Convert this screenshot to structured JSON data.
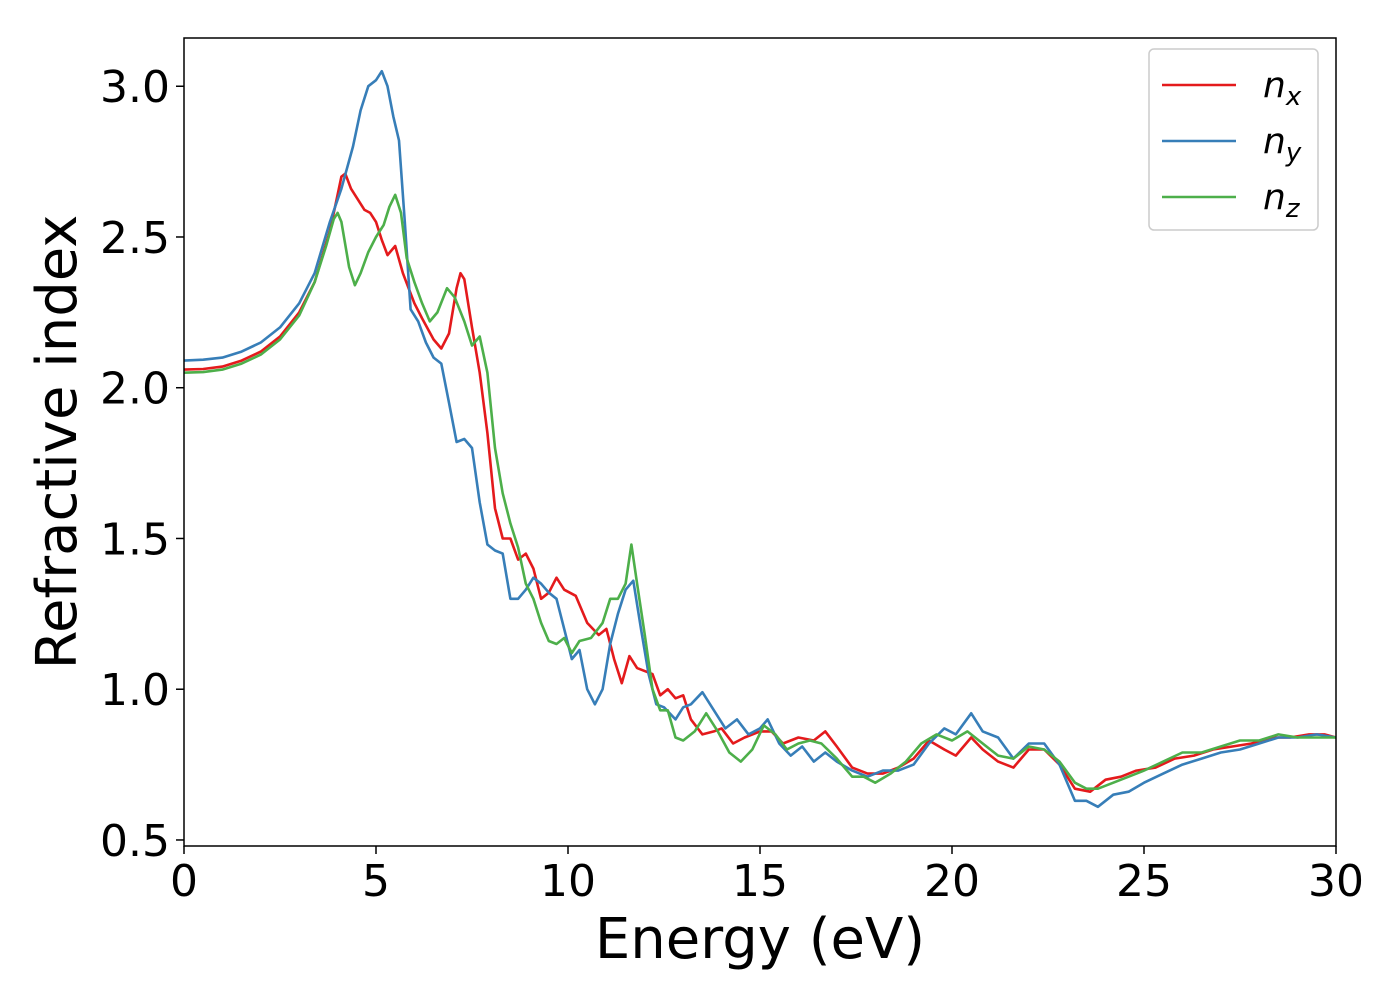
{
  "chart_data": {
    "type": "line",
    "title": "",
    "xlabel": "Energy (eV)",
    "ylabel": "Refractive index",
    "xlim": [
      0,
      30
    ],
    "ylim": [
      0.48,
      3.16
    ],
    "xticks": [
      0,
      5,
      10,
      15,
      20,
      25,
      30
    ],
    "xtick_labels": [
      "0",
      "5",
      "10",
      "15",
      "20",
      "25",
      "30"
    ],
    "yticks": [
      0.5,
      1.0,
      1.5,
      2.0,
      2.5,
      3.0
    ],
    "ytick_labels": [
      "0.5",
      "1.0",
      "1.5",
      "2.0",
      "2.5",
      "3.0"
    ],
    "grid": false,
    "legend_position": "top-right",
    "series": [
      {
        "name": "n_x",
        "label_main": "n",
        "label_sub": "x",
        "color": "#e41a1c",
        "points": [
          [
            0,
            2.06
          ],
          [
            0.5,
            2.062
          ],
          [
            1,
            2.07
          ],
          [
            1.5,
            2.09
          ],
          [
            2,
            2.12
          ],
          [
            2.5,
            2.17
          ],
          [
            3,
            2.25
          ],
          [
            3.4,
            2.35
          ],
          [
            3.8,
            2.52
          ],
          [
            4.0,
            2.64
          ],
          [
            4.1,
            2.7
          ],
          [
            4.2,
            2.71
          ],
          [
            4.35,
            2.66
          ],
          [
            4.5,
            2.63
          ],
          [
            4.7,
            2.59
          ],
          [
            4.85,
            2.58
          ],
          [
            5.0,
            2.55
          ],
          [
            5.15,
            2.49
          ],
          [
            5.3,
            2.44
          ],
          [
            5.5,
            2.47
          ],
          [
            5.7,
            2.38
          ],
          [
            5.85,
            2.33
          ],
          [
            6.0,
            2.28
          ],
          [
            6.2,
            2.23
          ],
          [
            6.5,
            2.16
          ],
          [
            6.7,
            2.13
          ],
          [
            6.9,
            2.18
          ],
          [
            7.1,
            2.33
          ],
          [
            7.2,
            2.38
          ],
          [
            7.3,
            2.36
          ],
          [
            7.5,
            2.2
          ],
          [
            7.7,
            2.05
          ],
          [
            7.9,
            1.85
          ],
          [
            8.1,
            1.6
          ],
          [
            8.3,
            1.5
          ],
          [
            8.5,
            1.5
          ],
          [
            8.7,
            1.43
          ],
          [
            8.9,
            1.45
          ],
          [
            9.1,
            1.4
          ],
          [
            9.3,
            1.3
          ],
          [
            9.5,
            1.32
          ],
          [
            9.7,
            1.37
          ],
          [
            9.9,
            1.33
          ],
          [
            10.2,
            1.31
          ],
          [
            10.5,
            1.22
          ],
          [
            10.8,
            1.18
          ],
          [
            11.0,
            1.2
          ],
          [
            11.2,
            1.1
          ],
          [
            11.4,
            1.02
          ],
          [
            11.6,
            1.11
          ],
          [
            11.8,
            1.07
          ],
          [
            12.0,
            1.06
          ],
          [
            12.2,
            1.05
          ],
          [
            12.4,
            0.98
          ],
          [
            12.6,
            1.0
          ],
          [
            12.8,
            0.97
          ],
          [
            13.0,
            0.98
          ],
          [
            13.2,
            0.9
          ],
          [
            13.5,
            0.85
          ],
          [
            13.8,
            0.86
          ],
          [
            14.0,
            0.87
          ],
          [
            14.3,
            0.82
          ],
          [
            14.6,
            0.84
          ],
          [
            15.0,
            0.86
          ],
          [
            15.3,
            0.86
          ],
          [
            15.6,
            0.82
          ],
          [
            16.0,
            0.84
          ],
          [
            16.4,
            0.83
          ],
          [
            16.7,
            0.86
          ],
          [
            17.0,
            0.81
          ],
          [
            17.4,
            0.74
          ],
          [
            17.8,
            0.72
          ],
          [
            18.2,
            0.72
          ],
          [
            18.6,
            0.74
          ],
          [
            19.0,
            0.77
          ],
          [
            19.4,
            0.83
          ],
          [
            19.8,
            0.8
          ],
          [
            20.1,
            0.78
          ],
          [
            20.5,
            0.84
          ],
          [
            20.8,
            0.8
          ],
          [
            21.2,
            0.76
          ],
          [
            21.6,
            0.74
          ],
          [
            22.0,
            0.8
          ],
          [
            22.4,
            0.8
          ],
          [
            22.8,
            0.75
          ],
          [
            23.2,
            0.67
          ],
          [
            23.6,
            0.66
          ],
          [
            24.0,
            0.7
          ],
          [
            24.4,
            0.71
          ],
          [
            24.8,
            0.73
          ],
          [
            25.3,
            0.74
          ],
          [
            25.8,
            0.77
          ],
          [
            26.3,
            0.78
          ],
          [
            26.8,
            0.8
          ],
          [
            27.3,
            0.81
          ],
          [
            27.8,
            0.82
          ],
          [
            28.3,
            0.84
          ],
          [
            28.8,
            0.84
          ],
          [
            29.3,
            0.85
          ],
          [
            29.7,
            0.85
          ],
          [
            30.0,
            0.84
          ]
        ]
      },
      {
        "name": "n_y",
        "label_main": "n",
        "label_sub": "y",
        "color": "#377eb8",
        "points": [
          [
            0,
            2.09
          ],
          [
            0.5,
            2.093
          ],
          [
            1,
            2.1
          ],
          [
            1.5,
            2.12
          ],
          [
            2,
            2.15
          ],
          [
            2.5,
            2.2
          ],
          [
            3,
            2.28
          ],
          [
            3.4,
            2.38
          ],
          [
            3.8,
            2.55
          ],
          [
            4.1,
            2.66
          ],
          [
            4.4,
            2.8
          ],
          [
            4.6,
            2.92
          ],
          [
            4.8,
            3.0
          ],
          [
            5.0,
            3.02
          ],
          [
            5.15,
            3.05
          ],
          [
            5.3,
            3.0
          ],
          [
            5.45,
            2.9
          ],
          [
            5.6,
            2.82
          ],
          [
            5.75,
            2.55
          ],
          [
            5.9,
            2.26
          ],
          [
            6.1,
            2.22
          ],
          [
            6.3,
            2.15
          ],
          [
            6.5,
            2.1
          ],
          [
            6.7,
            2.08
          ],
          [
            6.9,
            1.95
          ],
          [
            7.1,
            1.82
          ],
          [
            7.3,
            1.83
          ],
          [
            7.5,
            1.8
          ],
          [
            7.7,
            1.62
          ],
          [
            7.9,
            1.48
          ],
          [
            8.1,
            1.46
          ],
          [
            8.3,
            1.45
          ],
          [
            8.5,
            1.3
          ],
          [
            8.7,
            1.3
          ],
          [
            8.9,
            1.33
          ],
          [
            9.1,
            1.37
          ],
          [
            9.3,
            1.35
          ],
          [
            9.5,
            1.32
          ],
          [
            9.7,
            1.3
          ],
          [
            9.9,
            1.2
          ],
          [
            10.1,
            1.1
          ],
          [
            10.3,
            1.13
          ],
          [
            10.5,
            1.0
          ],
          [
            10.7,
            0.95
          ],
          [
            10.9,
            1.0
          ],
          [
            11.1,
            1.15
          ],
          [
            11.3,
            1.25
          ],
          [
            11.5,
            1.33
          ],
          [
            11.7,
            1.36
          ],
          [
            11.9,
            1.2
          ],
          [
            12.1,
            1.05
          ],
          [
            12.3,
            0.95
          ],
          [
            12.5,
            0.94
          ],
          [
            12.8,
            0.9
          ],
          [
            13.0,
            0.94
          ],
          [
            13.2,
            0.95
          ],
          [
            13.5,
            0.99
          ],
          [
            13.8,
            0.93
          ],
          [
            14.1,
            0.87
          ],
          [
            14.4,
            0.9
          ],
          [
            14.7,
            0.85
          ],
          [
            15.0,
            0.87
          ],
          [
            15.2,
            0.9
          ],
          [
            15.5,
            0.82
          ],
          [
            15.8,
            0.78
          ],
          [
            16.1,
            0.81
          ],
          [
            16.4,
            0.76
          ],
          [
            16.7,
            0.79
          ],
          [
            17.0,
            0.76
          ],
          [
            17.4,
            0.73
          ],
          [
            17.8,
            0.71
          ],
          [
            18.2,
            0.73
          ],
          [
            18.6,
            0.73
          ],
          [
            19.0,
            0.75
          ],
          [
            19.4,
            0.82
          ],
          [
            19.8,
            0.87
          ],
          [
            20.1,
            0.85
          ],
          [
            20.5,
            0.92
          ],
          [
            20.8,
            0.86
          ],
          [
            21.2,
            0.84
          ],
          [
            21.6,
            0.77
          ],
          [
            22.0,
            0.82
          ],
          [
            22.4,
            0.82
          ],
          [
            22.8,
            0.75
          ],
          [
            23.2,
            0.63
          ],
          [
            23.5,
            0.63
          ],
          [
            23.8,
            0.61
          ],
          [
            24.2,
            0.65
          ],
          [
            24.6,
            0.66
          ],
          [
            25.0,
            0.69
          ],
          [
            25.5,
            0.72
          ],
          [
            26.0,
            0.75
          ],
          [
            26.5,
            0.77
          ],
          [
            27.0,
            0.79
          ],
          [
            27.5,
            0.8
          ],
          [
            28.0,
            0.82
          ],
          [
            28.5,
            0.84
          ],
          [
            29.0,
            0.84
          ],
          [
            29.5,
            0.85
          ],
          [
            30.0,
            0.84
          ]
        ]
      },
      {
        "name": "n_z",
        "label_main": "n",
        "label_sub": "z",
        "color": "#4daf4a",
        "points": [
          [
            0,
            2.05
          ],
          [
            0.5,
            2.052
          ],
          [
            1,
            2.06
          ],
          [
            1.5,
            2.08
          ],
          [
            2,
            2.11
          ],
          [
            2.5,
            2.16
          ],
          [
            3,
            2.24
          ],
          [
            3.4,
            2.35
          ],
          [
            3.7,
            2.47
          ],
          [
            3.9,
            2.56
          ],
          [
            4.0,
            2.58
          ],
          [
            4.1,
            2.55
          ],
          [
            4.3,
            2.4
          ],
          [
            4.45,
            2.34
          ],
          [
            4.6,
            2.38
          ],
          [
            4.8,
            2.45
          ],
          [
            5.0,
            2.5
          ],
          [
            5.2,
            2.54
          ],
          [
            5.35,
            2.6
          ],
          [
            5.5,
            2.64
          ],
          [
            5.65,
            2.58
          ],
          [
            5.8,
            2.43
          ],
          [
            6.0,
            2.35
          ],
          [
            6.2,
            2.28
          ],
          [
            6.4,
            2.22
          ],
          [
            6.6,
            2.25
          ],
          [
            6.85,
            2.33
          ],
          [
            7.05,
            2.3
          ],
          [
            7.3,
            2.22
          ],
          [
            7.5,
            2.14
          ],
          [
            7.7,
            2.17
          ],
          [
            7.9,
            2.05
          ],
          [
            8.1,
            1.8
          ],
          [
            8.3,
            1.65
          ],
          [
            8.5,
            1.55
          ],
          [
            8.7,
            1.47
          ],
          [
            8.9,
            1.35
          ],
          [
            9.1,
            1.3
          ],
          [
            9.3,
            1.22
          ],
          [
            9.5,
            1.16
          ],
          [
            9.7,
            1.15
          ],
          [
            9.9,
            1.17
          ],
          [
            10.1,
            1.12
          ],
          [
            10.3,
            1.16
          ],
          [
            10.6,
            1.17
          ],
          [
            10.9,
            1.22
          ],
          [
            11.1,
            1.3
          ],
          [
            11.3,
            1.3
          ],
          [
            11.5,
            1.35
          ],
          [
            11.65,
            1.48
          ],
          [
            11.8,
            1.35
          ],
          [
            12.0,
            1.18
          ],
          [
            12.2,
            1.0
          ],
          [
            12.4,
            0.93
          ],
          [
            12.6,
            0.93
          ],
          [
            12.8,
            0.84
          ],
          [
            13.0,
            0.83
          ],
          [
            13.3,
            0.86
          ],
          [
            13.6,
            0.92
          ],
          [
            13.9,
            0.86
          ],
          [
            14.2,
            0.79
          ],
          [
            14.5,
            0.76
          ],
          [
            14.8,
            0.8
          ],
          [
            15.1,
            0.88
          ],
          [
            15.4,
            0.85
          ],
          [
            15.7,
            0.8
          ],
          [
            16.0,
            0.82
          ],
          [
            16.3,
            0.83
          ],
          [
            16.6,
            0.82
          ],
          [
            17.0,
            0.77
          ],
          [
            17.4,
            0.71
          ],
          [
            17.7,
            0.71
          ],
          [
            18.0,
            0.69
          ],
          [
            18.4,
            0.72
          ],
          [
            18.8,
            0.76
          ],
          [
            19.2,
            0.82
          ],
          [
            19.6,
            0.85
          ],
          [
            20.0,
            0.83
          ],
          [
            20.4,
            0.86
          ],
          [
            20.8,
            0.82
          ],
          [
            21.2,
            0.78
          ],
          [
            21.6,
            0.77
          ],
          [
            22.0,
            0.81
          ],
          [
            22.4,
            0.8
          ],
          [
            22.8,
            0.76
          ],
          [
            23.2,
            0.69
          ],
          [
            23.5,
            0.67
          ],
          [
            23.8,
            0.67
          ],
          [
            24.2,
            0.69
          ],
          [
            24.6,
            0.71
          ],
          [
            25.0,
            0.73
          ],
          [
            25.5,
            0.76
          ],
          [
            26.0,
            0.79
          ],
          [
            26.5,
            0.79
          ],
          [
            27.0,
            0.81
          ],
          [
            27.5,
            0.83
          ],
          [
            28.0,
            0.83
          ],
          [
            28.5,
            0.85
          ],
          [
            29.0,
            0.84
          ],
          [
            29.5,
            0.84
          ],
          [
            30.0,
            0.84
          ]
        ]
      }
    ]
  }
}
